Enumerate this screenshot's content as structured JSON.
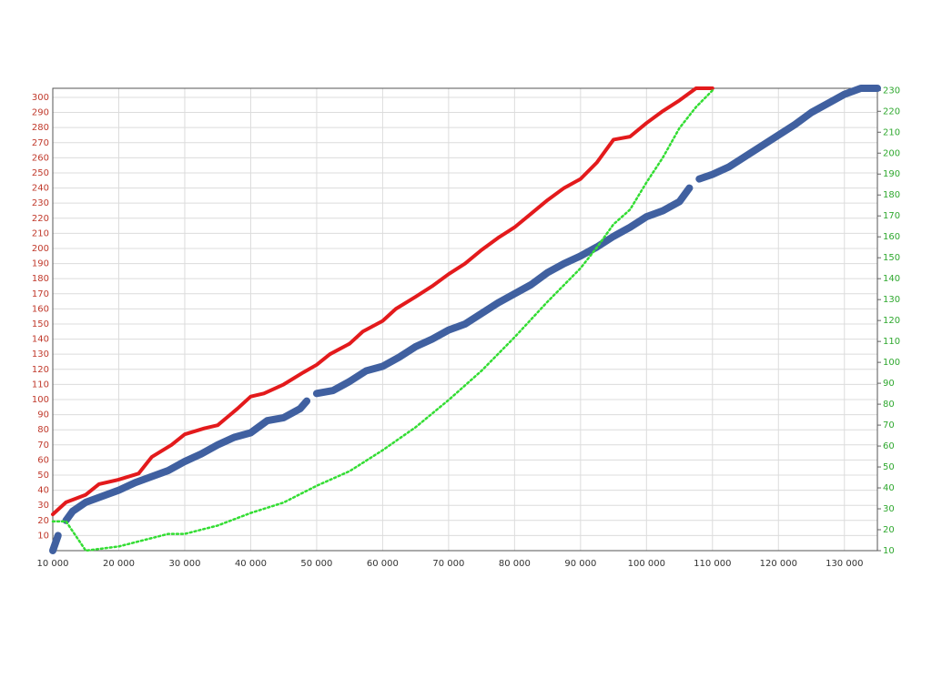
{
  "chart_data": {
    "type": "line",
    "xlim": [
      10000,
      135000
    ],
    "xticks": [
      {
        "value": 10000,
        "label": "10 000"
      },
      {
        "value": 20000,
        "label": "20 000"
      },
      {
        "value": 30000,
        "label": "30 000"
      },
      {
        "value": 40000,
        "label": "40 000"
      },
      {
        "value": 50000,
        "label": "50 000"
      },
      {
        "value": 60000,
        "label": "60 000"
      },
      {
        "value": 70000,
        "label": "70 000"
      },
      {
        "value": 80000,
        "label": "80 000"
      },
      {
        "value": 90000,
        "label": "90 000"
      },
      {
        "value": 100000,
        "label": "100 000"
      },
      {
        "value": 110000,
        "label": "110 000"
      },
      {
        "value": 120000,
        "label": "120 000"
      },
      {
        "value": 130000,
        "label": "130 000"
      }
    ],
    "ylim": [
      0,
      306
    ],
    "yticks": [
      10,
      20,
      30,
      40,
      50,
      60,
      70,
      80,
      90,
      100,
      110,
      120,
      130,
      140,
      150,
      160,
      170,
      180,
      190,
      200,
      210,
      220,
      230,
      240,
      250,
      260,
      270,
      280,
      290,
      300
    ],
    "y2lim": [
      10,
      231
    ],
    "y2ticks": [
      10,
      20,
      30,
      40,
      50,
      60,
      70,
      80,
      90,
      100,
      110,
      120,
      130,
      140,
      150,
      160,
      170,
      180,
      190,
      200,
      210,
      220,
      230
    ],
    "ytick_color": "#c0392b",
    "y2tick_color": "#2fa82f",
    "grid": true,
    "series": [
      {
        "color": "#e31a1c",
        "style": "solid",
        "x": [
          10000,
          12000,
          15000,
          17000,
          20000,
          23000,
          25000,
          28000,
          30000,
          33000,
          35000,
          38000,
          40000,
          42000,
          45000,
          48000,
          50000,
          52000,
          55000,
          57000,
          60000,
          62000,
          65000,
          67500,
          70000,
          72500,
          75000,
          77500,
          80000,
          82500,
          85000,
          87500,
          90000,
          92500,
          95000,
          97500,
          100000,
          102500,
          105000,
          107500,
          110000
        ],
        "values": [
          24,
          32,
          37,
          44,
          47,
          51,
          62,
          70,
          77,
          81,
          83,
          94,
          102,
          104,
          110,
          118,
          123,
          130,
          137,
          145,
          152,
          160,
          168,
          175,
          183,
          190,
          199,
          207,
          214,
          223,
          232,
          240,
          246,
          257,
          272,
          274,
          283,
          291,
          298,
          306,
          306
        ]
      },
      {
        "color": "#4060a0",
        "style": "thick",
        "x": [
          10000,
          10800,
          11400,
          12000,
          13000,
          15000,
          17500,
          20000,
          22500,
          25000,
          27500,
          30000,
          32500,
          35000,
          37500,
          40000,
          42500,
          45000,
          47500,
          48500,
          49200,
          50000,
          52500,
          55000,
          57500,
          60000,
          62500,
          65000,
          67500,
          70000,
          72500,
          75000,
          77500,
          80000,
          82500,
          85000,
          87500,
          90000,
          92500,
          95000,
          97500,
          100000,
          102500,
          105000,
          106500,
          107200,
          108000,
          110000,
          112500,
          115000,
          117500,
          120000,
          122500,
          125000,
          127500,
          130000,
          132500,
          135000
        ],
        "values": [
          0,
          10,
          null,
          20,
          26,
          32,
          36,
          40,
          45,
          49,
          53,
          59,
          64,
          70,
          75,
          78,
          86,
          88,
          94,
          99,
          null,
          104,
          106,
          112,
          119,
          122,
          128,
          135,
          140,
          146,
          150,
          157,
          164,
          170,
          176,
          184,
          190,
          195,
          201,
          208,
          214,
          221,
          225,
          231,
          240,
          null,
          246,
          249,
          254,
          261,
          268,
          275,
          282,
          290,
          296,
          302,
          306,
          306
        ]
      },
      {
        "color": "#33dd33",
        "style": "dotted",
        "axis": "y2",
        "x": [
          10000,
          12000,
          15000,
          17500,
          20000,
          25000,
          27500,
          30000,
          35000,
          40000,
          45000,
          50000,
          55000,
          60000,
          65000,
          70000,
          75000,
          80000,
          85000,
          90000,
          92500,
          95000,
          97500,
          100000,
          102500,
          105000,
          107500,
          110000
        ],
        "values": [
          24,
          24,
          10,
          11,
          12,
          16,
          18,
          18,
          22,
          28,
          33,
          41,
          48,
          58,
          69,
          82,
          96,
          112,
          129,
          145,
          155,
          166,
          173,
          186,
          198,
          212,
          222,
          230
        ]
      }
    ]
  }
}
